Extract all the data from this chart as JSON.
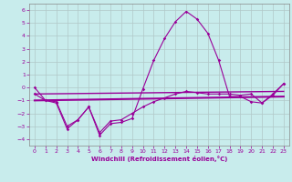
{
  "xlabel": "Windchill (Refroidissement éolien,°C)",
  "background_color": "#c8ecec",
  "grid_color": "#b0c8c8",
  "line_color": "#990099",
  "xlim": [
    -0.5,
    23.5
  ],
  "ylim": [
    -4.5,
    6.5
  ],
  "yticks": [
    -4,
    -3,
    -2,
    -1,
    0,
    1,
    2,
    3,
    4,
    5,
    6
  ],
  "xticks": [
    0,
    1,
    2,
    3,
    4,
    5,
    6,
    7,
    8,
    9,
    10,
    11,
    12,
    13,
    14,
    15,
    16,
    17,
    18,
    19,
    20,
    21,
    22,
    23
  ],
  "line1_x": [
    0,
    1,
    2,
    3,
    4,
    5,
    6,
    7,
    8,
    9,
    10,
    11,
    12,
    13,
    14,
    15,
    16,
    17,
    18,
    19,
    20,
    21,
    22,
    23
  ],
  "line1_y": [
    0,
    -1.0,
    -1.2,
    -3.2,
    -2.5,
    -1.5,
    -3.7,
    -2.8,
    -2.7,
    -2.4,
    -0.1,
    2.1,
    3.8,
    5.1,
    5.9,
    5.3,
    4.2,
    2.1,
    -0.7,
    -0.7,
    -1.1,
    -1.2,
    -0.5,
    0.3
  ],
  "line2_x": [
    0,
    23
  ],
  "line2_y": [
    -0.5,
    -0.3
  ],
  "line3_x": [
    0,
    23
  ],
  "line3_y": [
    -1.0,
    -0.7
  ],
  "line4_x": [
    0,
    1,
    2,
    3,
    4,
    5,
    6,
    7,
    8,
    9,
    10,
    11,
    12,
    13,
    14,
    15,
    16,
    17,
    18,
    19,
    20,
    21,
    22,
    23
  ],
  "line4_y": [
    -0.5,
    -1.0,
    -1.1,
    -3.0,
    -2.5,
    -1.5,
    -3.5,
    -2.6,
    -2.5,
    -2.0,
    -1.5,
    -1.1,
    -0.8,
    -0.5,
    -0.3,
    -0.4,
    -0.5,
    -0.5,
    -0.5,
    -0.6,
    -0.5,
    -1.2,
    -0.6,
    0.3
  ]
}
